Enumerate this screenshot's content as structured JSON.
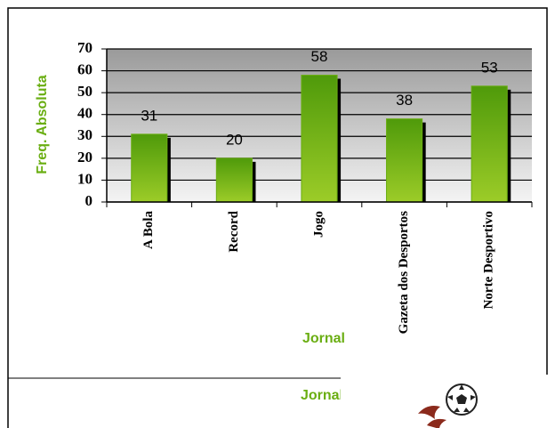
{
  "chart_data": {
    "type": "bar",
    "y_label": "Freq. Absoluta",
    "x_label": "Jornal",
    "categories": [
      "A Bola",
      "Record",
      "Jogo",
      "Gazeta dos Desportos",
      "Norte Desportivo"
    ],
    "values": [
      31,
      20,
      58,
      38,
      53
    ],
    "color": "#6aae12",
    "ylim": [
      0,
      70
    ],
    "yticks": [
      0,
      10,
      20,
      30,
      40,
      50,
      60,
      70
    ],
    "grid": true
  },
  "footer": {
    "label": "Jornal"
  }
}
